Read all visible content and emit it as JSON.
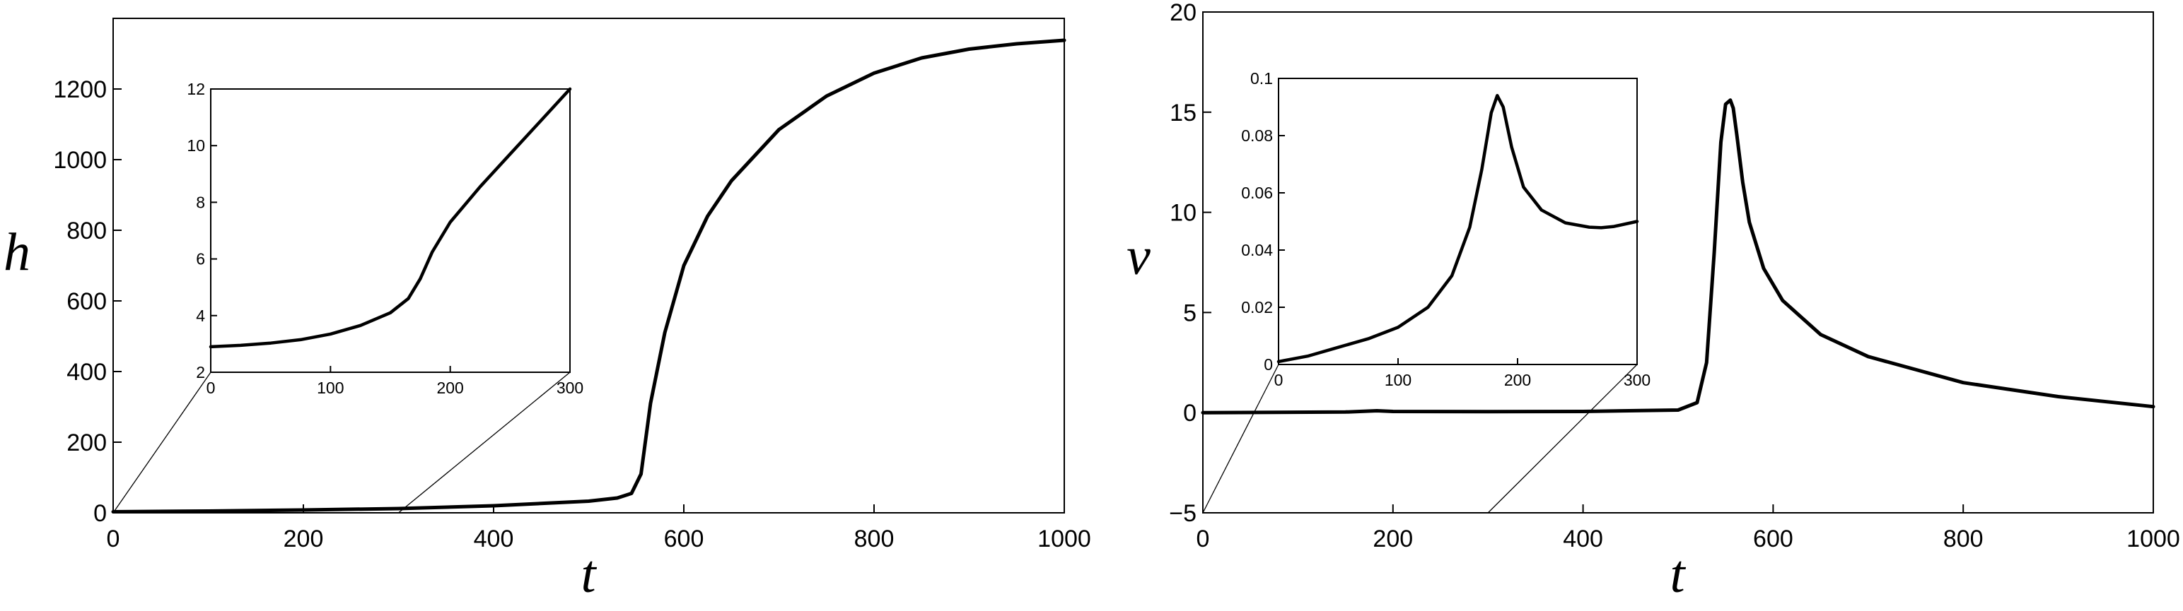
{
  "chart_data": [
    {
      "type": "line",
      "xlabel": "t",
      "ylabel": "h",
      "xlim": [
        0,
        1000
      ],
      "ylim": [
        0,
        1400
      ],
      "xticks": [
        "0",
        "200",
        "400",
        "600",
        "800",
        "1000"
      ],
      "yticks": [
        "0",
        "200",
        "400",
        "600",
        "800",
        "1000",
        "1200"
      ],
      "grid": false,
      "series": [
        {
          "x": [
            0,
            100,
            200,
            300,
            400,
            500,
            530,
            545,
            555,
            565,
            580,
            600,
            625,
            650,
            700,
            750,
            800,
            850,
            900,
            950,
            1000
          ],
          "y": [
            3,
            5,
            8,
            12,
            20,
            33,
            42,
            55,
            110,
            310,
            510,
            700,
            840,
            940,
            1085,
            1180,
            1245,
            1288,
            1313,
            1328,
            1338
          ]
        }
      ],
      "inset": {
        "xlim": [
          0,
          300
        ],
        "ylim": [
          2,
          12
        ],
        "xticks": [
          "0",
          "100",
          "200",
          "300"
        ],
        "yticks": [
          "2",
          "4",
          "6",
          "8",
          "10",
          "12"
        ],
        "series": [
          {
            "x": [
              0,
              25,
              50,
              75,
              100,
              125,
              150,
              165,
              175,
              185,
              200,
              225,
              250,
              275,
              300
            ],
            "y": [
              2.9,
              2.95,
              3.03,
              3.15,
              3.35,
              3.65,
              4.1,
              4.6,
              5.3,
              6.25,
              7.3,
              8.55,
              9.7,
              10.85,
              12
            ]
          }
        ]
      }
    },
    {
      "type": "line",
      "xlabel": "t",
      "ylabel": "v",
      "xlim": [
        0,
        1000
      ],
      "ylim": [
        -5,
        20
      ],
      "xticks": [
        "0",
        "200",
        "400",
        "600",
        "800",
        "1000"
      ],
      "yticks": [
        "−5",
        "0",
        "5",
        "10",
        "15",
        "20"
      ],
      "grid": false,
      "series": [
        {
          "x": [
            0,
            150,
            183,
            200,
            300,
            400,
            500,
            520,
            530,
            538,
            545,
            550,
            555,
            558,
            562,
            568,
            575,
            590,
            610,
            650,
            700,
            800,
            900,
            1000
          ],
          "y": [
            0.0,
            0.03,
            0.095,
            0.06,
            0.05,
            0.06,
            0.13,
            0.5,
            2.5,
            8.0,
            13.5,
            15.4,
            15.6,
            15.2,
            13.8,
            11.5,
            9.5,
            7.2,
            5.6,
            3.9,
            2.8,
            1.5,
            0.8,
            0.3
          ]
        }
      ],
      "inset": {
        "xlim": [
          0,
          300
        ],
        "ylim": [
          0,
          0.1
        ],
        "xticks": [
          "0",
          "100",
          "200",
          "300"
        ],
        "yticks": [
          "0",
          "0.02",
          "0.04",
          "0.06",
          "0.08",
          "0.1"
        ],
        "series": [
          {
            "x": [
              0,
              25,
              50,
              75,
              100,
              125,
              145,
              160,
              170,
              178,
              183,
              188,
              195,
              205,
              220,
              240,
              260,
              270,
              280,
              300
            ],
            "y": [
              0.001,
              0.003,
              0.006,
              0.009,
              0.013,
              0.02,
              0.031,
              0.048,
              0.068,
              0.088,
              0.094,
              0.09,
              0.076,
              0.062,
              0.054,
              0.0495,
              0.048,
              0.0478,
              0.0482,
              0.05
            ]
          }
        ]
      }
    }
  ]
}
